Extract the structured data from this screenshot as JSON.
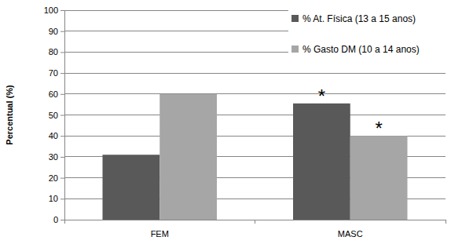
{
  "chart_data": {
    "type": "bar",
    "y_label": "Percentual (%)",
    "categories": [
      "FEM",
      "MASC"
    ],
    "series": [
      {
        "name": "% At. Física (13 a 15 anos)",
        "color": "#595959",
        "values": [
          31,
          55.5
        ]
      },
      {
        "name": "% Gasto DM (10 a 14 anos)",
        "color": "#a6a6a6",
        "values": [
          60,
          40
        ]
      }
    ],
    "annotations": [
      {
        "text": "*",
        "category": "MASC",
        "series": "% At. Física (13 a 15 anos)"
      },
      {
        "text": "*",
        "category": "MASC",
        "series": "% Gasto DM (10 a 14 anos)"
      }
    ],
    "ylim": [
      0,
      100
    ],
    "yticks": [
      0,
      10,
      20,
      30,
      40,
      50,
      60,
      70,
      80,
      90,
      100
    ],
    "grid": true,
    "legend": "top-right"
  }
}
